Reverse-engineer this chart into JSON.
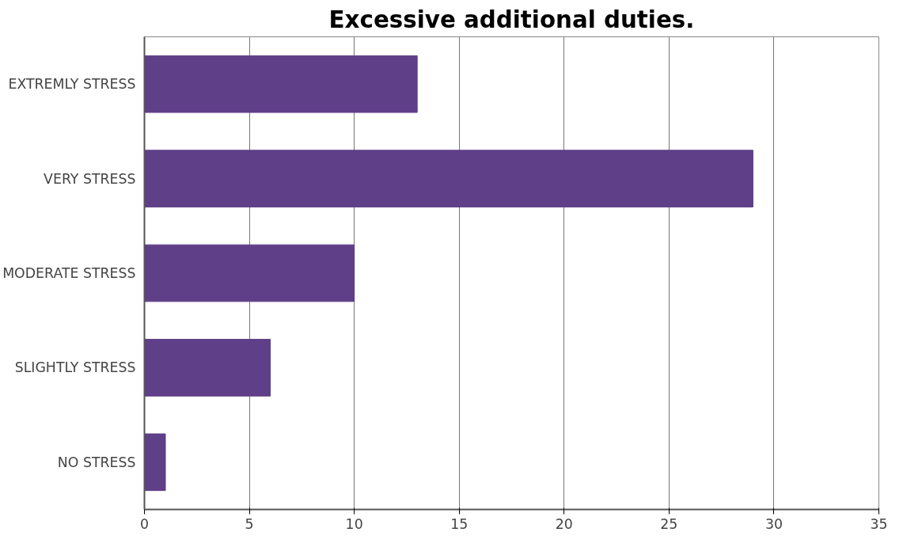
{
  "chart_data": {
    "type": "bar",
    "orientation": "horizontal",
    "title": "Excessive additional duties.",
    "categories": [
      "EXTREMLY STRESS",
      "VERY STRESS",
      "MODERATE STRESS",
      "SLIGHTLY STRESS",
      "NO STRESS"
    ],
    "values": [
      13,
      29,
      10,
      6,
      1
    ],
    "color": "#5f3f87",
    "xlim": [
      0,
      35
    ],
    "xticks": [
      0,
      5,
      10,
      15,
      20,
      25,
      30,
      35
    ],
    "grid": "x"
  }
}
